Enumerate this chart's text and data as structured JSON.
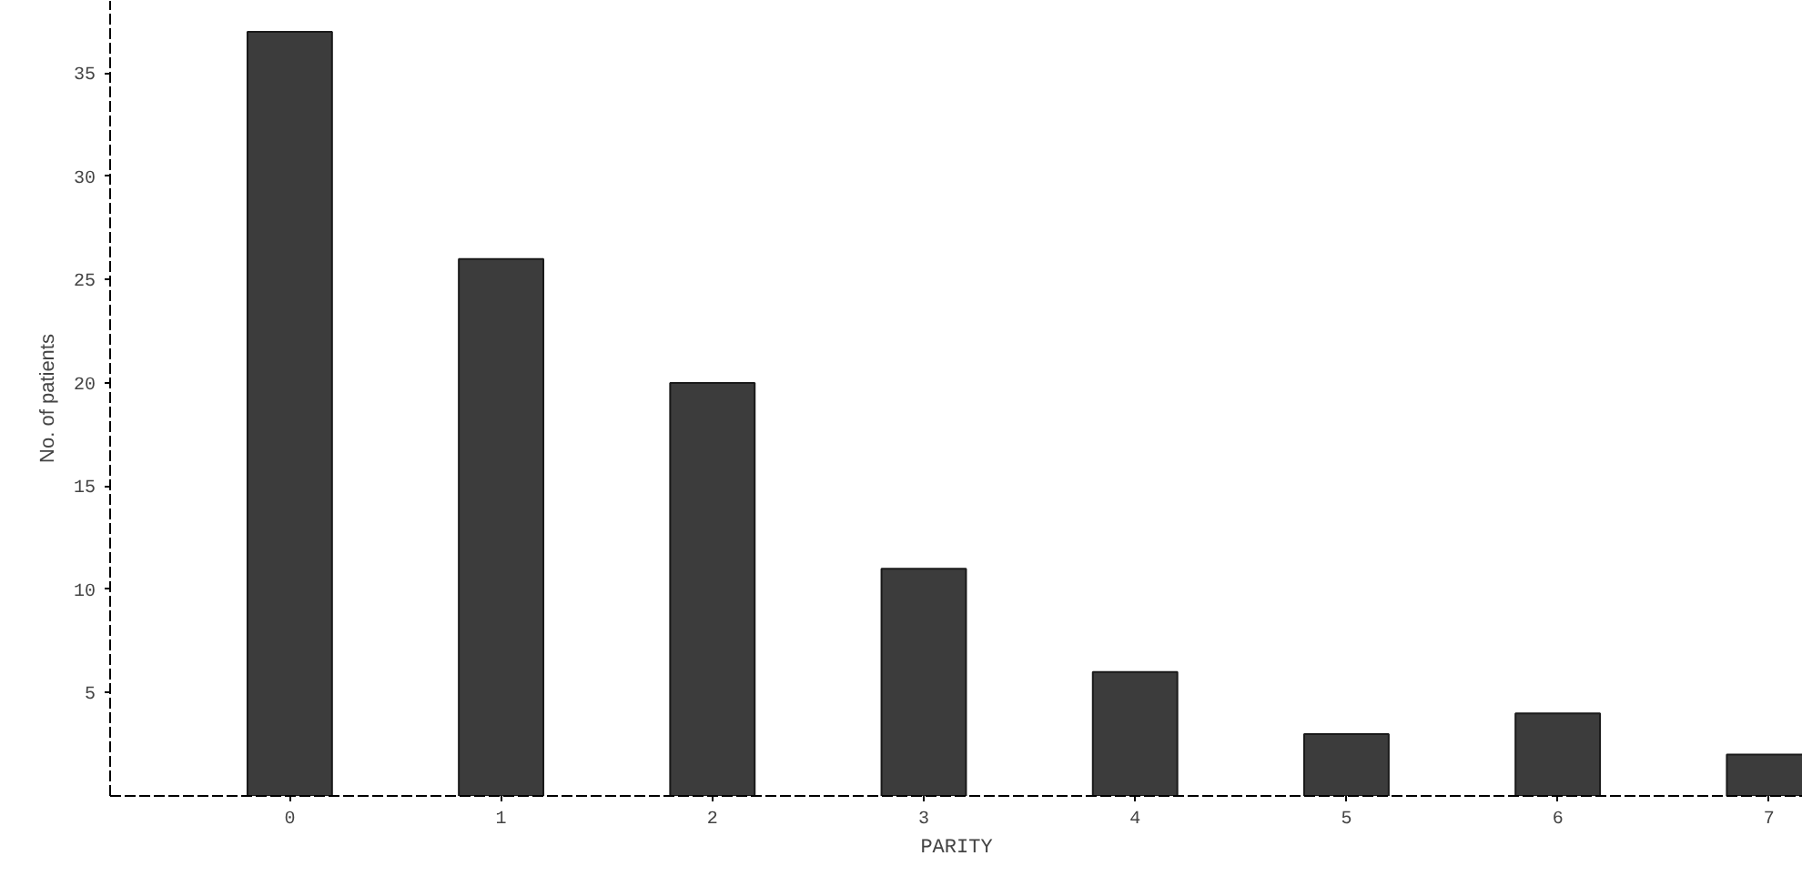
{
  "chart_data": {
    "type": "bar",
    "xlabel": "PARITY",
    "ylabel": "No. of patients",
    "categories": [
      "0",
      "1",
      "2",
      "3",
      "4",
      "5",
      "6",
      "7"
    ],
    "values": [
      37,
      26,
      20,
      11,
      6,
      3,
      4,
      2
    ],
    "color": "#1a1a1a",
    "ylim": [
      0,
      38.5
    ],
    "yticks": [
      5,
      10,
      15,
      20,
      25,
      30,
      35
    ],
    "grid": false
  }
}
